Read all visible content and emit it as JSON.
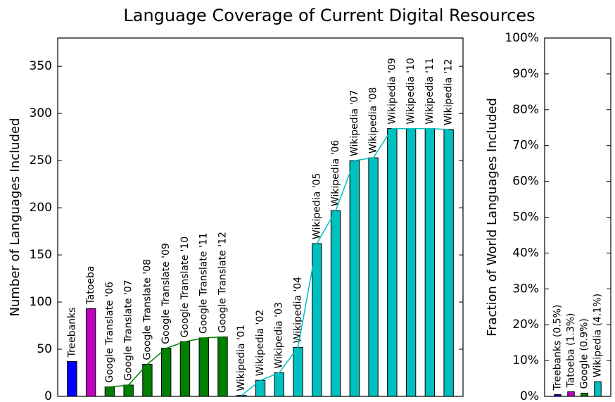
{
  "title": "Language Coverage of Current Digital Resources",
  "chart_data": [
    {
      "type": "bar",
      "ylabel": "Number of Languages Included",
      "categories": [
        "Treebanks",
        "Tatoeba",
        "Google Translate '06",
        "Google Translate '07",
        "Google Translate '08",
        "Google Translate '09",
        "Google Translate '10",
        "Google Translate '11",
        "Google Translate '12",
        "Wikipedia '01",
        "Wikipedia '02",
        "Wikipedia '03",
        "Wikipedia '04",
        "Wikipedia '05",
        "Wikipedia '06",
        "Wikipedia '07",
        "Wikipedia '08",
        "Wikipedia '09",
        "Wikipedia '10",
        "Wikipedia '11",
        "Wikipedia '12"
      ],
      "values": [
        37,
        93,
        10,
        12,
        34,
        51,
        58,
        62,
        63,
        1,
        17,
        25,
        52,
        162,
        197,
        250,
        253,
        284,
        284,
        284,
        283
      ],
      "colors": [
        "#0000ff",
        "#bf00bf",
        "#008000",
        "#008000",
        "#008000",
        "#008000",
        "#008000",
        "#008000",
        "#008000",
        "#00bfbf",
        "#00bfbf",
        "#00bfbf",
        "#00bfbf",
        "#00bfbf",
        "#00bfbf",
        "#00bfbf",
        "#00bfbf",
        "#00bfbf",
        "#00bfbf",
        "#00bfbf",
        "#00bfbf"
      ],
      "ylim": [
        0,
        380
      ],
      "yticks": [
        0,
        50,
        100,
        150,
        200,
        250,
        300,
        350
      ]
    },
    {
      "type": "bar",
      "ylabel": "Fraction of World Languages Included",
      "categories": [
        "Treebanks (0.5%)",
        "Tatoeba (1.3%)",
        "Google (0.9%)",
        "Wikipedia (4.1%)"
      ],
      "values": [
        0.5,
        1.3,
        0.9,
        4.1
      ],
      "colors": [
        "#0000ff",
        "#bf00bf",
        "#008000",
        "#00bfbf"
      ],
      "ylim": [
        0,
        100
      ],
      "yticks": [
        {
          "value": 0,
          "label": "0%"
        },
        {
          "value": 10,
          "label": "10%"
        },
        {
          "value": 20,
          "label": "20%"
        },
        {
          "value": 30,
          "label": "30%"
        },
        {
          "value": 40,
          "label": "40%"
        },
        {
          "value": 50,
          "label": "50%"
        },
        {
          "value": 60,
          "label": "60%"
        },
        {
          "value": 70,
          "label": "70%"
        },
        {
          "value": 80,
          "label": "80%"
        },
        {
          "value": 90,
          "label": "90%"
        },
        {
          "value": 100,
          "label": "100%"
        }
      ]
    }
  ]
}
